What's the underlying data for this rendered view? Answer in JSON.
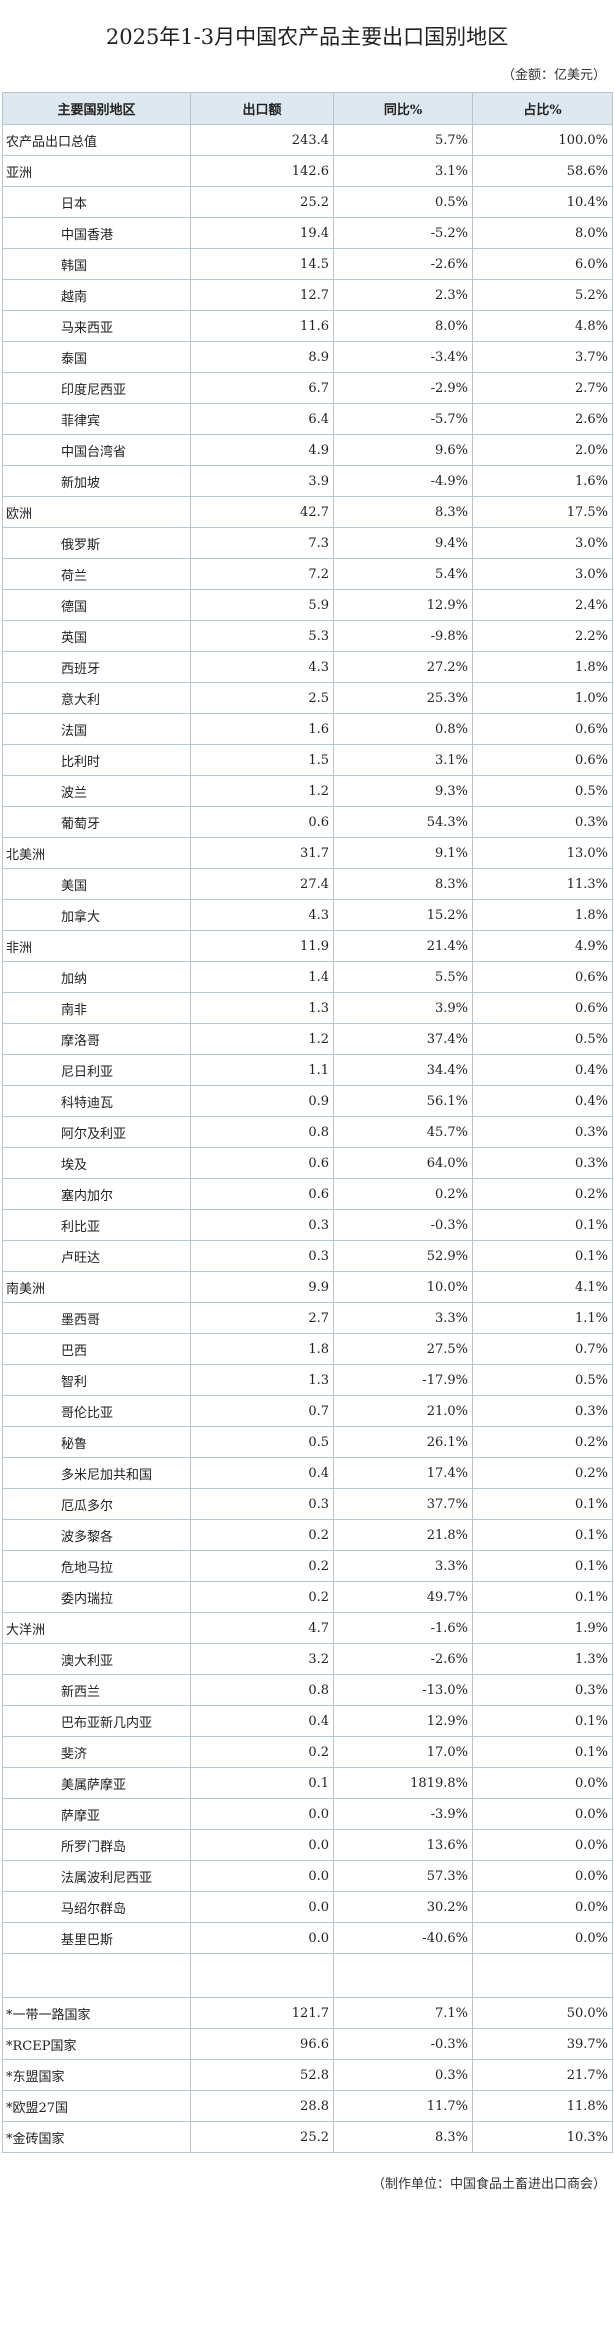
{
  "title": "2025年1-3月中国农产品主要出口国别地区",
  "unit_note": "（金额：亿美元）",
  "headers": [
    "主要国别地区",
    "出口额",
    "同比%",
    "占比%"
  ],
  "rows": [
    {
      "name": "农产品出口总值",
      "value": "243.4",
      "yoy": "5.7%",
      "share": "100.0%",
      "level": 0
    },
    {
      "name": "亚洲",
      "value": "142.6",
      "yoy": "3.1%",
      "share": "58.6%",
      "level": 0
    },
    {
      "name": "日本",
      "value": "25.2",
      "yoy": "0.5%",
      "share": "10.4%",
      "level": 1
    },
    {
      "name": "中国香港",
      "value": "19.4",
      "yoy": "-5.2%",
      "share": "8.0%",
      "level": 1
    },
    {
      "name": "韩国",
      "value": "14.5",
      "yoy": "-2.6%",
      "share": "6.0%",
      "level": 1
    },
    {
      "name": "越南",
      "value": "12.7",
      "yoy": "2.3%",
      "share": "5.2%",
      "level": 1
    },
    {
      "name": "马来西亚",
      "value": "11.6",
      "yoy": "8.0%",
      "share": "4.8%",
      "level": 1
    },
    {
      "name": "泰国",
      "value": "8.9",
      "yoy": "-3.4%",
      "share": "3.7%",
      "level": 1
    },
    {
      "name": "印度尼西亚",
      "value": "6.7",
      "yoy": "-2.9%",
      "share": "2.7%",
      "level": 1
    },
    {
      "name": "菲律宾",
      "value": "6.4",
      "yoy": "-5.7%",
      "share": "2.6%",
      "level": 1
    },
    {
      "name": "中国台湾省",
      "value": "4.9",
      "yoy": "9.6%",
      "share": "2.0%",
      "level": 1
    },
    {
      "name": "新加坡",
      "value": "3.9",
      "yoy": "-4.9%",
      "share": "1.6%",
      "level": 1
    },
    {
      "name": "欧洲",
      "value": "42.7",
      "yoy": "8.3%",
      "share": "17.5%",
      "level": 0
    },
    {
      "name": "俄罗斯",
      "value": "7.3",
      "yoy": "9.4%",
      "share": "3.0%",
      "level": 1
    },
    {
      "name": "荷兰",
      "value": "7.2",
      "yoy": "5.4%",
      "share": "3.0%",
      "level": 1
    },
    {
      "name": "德国",
      "value": "5.9",
      "yoy": "12.9%",
      "share": "2.4%",
      "level": 1
    },
    {
      "name": "英国",
      "value": "5.3",
      "yoy": "-9.8%",
      "share": "2.2%",
      "level": 1
    },
    {
      "name": "西班牙",
      "value": "4.3",
      "yoy": "27.2%",
      "share": "1.8%",
      "level": 1
    },
    {
      "name": "意大利",
      "value": "2.5",
      "yoy": "25.3%",
      "share": "1.0%",
      "level": 1
    },
    {
      "name": "法国",
      "value": "1.6",
      "yoy": "0.8%",
      "share": "0.6%",
      "level": 1
    },
    {
      "name": "比利时",
      "value": "1.5",
      "yoy": "3.1%",
      "share": "0.6%",
      "level": 1
    },
    {
      "name": "波兰",
      "value": "1.2",
      "yoy": "9.3%",
      "share": "0.5%",
      "level": 1
    },
    {
      "name": "葡萄牙",
      "value": "0.6",
      "yoy": "54.3%",
      "share": "0.3%",
      "level": 1
    },
    {
      "name": "北美洲",
      "value": "31.7",
      "yoy": "9.1%",
      "share": "13.0%",
      "level": 0
    },
    {
      "name": "美国",
      "value": "27.4",
      "yoy": "8.3%",
      "share": "11.3%",
      "level": 1
    },
    {
      "name": "加拿大",
      "value": "4.3",
      "yoy": "15.2%",
      "share": "1.8%",
      "level": 1
    },
    {
      "name": "非洲",
      "value": "11.9",
      "yoy": "21.4%",
      "share": "4.9%",
      "level": 0
    },
    {
      "name": "加纳",
      "value": "1.4",
      "yoy": "5.5%",
      "share": "0.6%",
      "level": 1
    },
    {
      "name": "南非",
      "value": "1.3",
      "yoy": "3.9%",
      "share": "0.6%",
      "level": 1
    },
    {
      "name": "摩洛哥",
      "value": "1.2",
      "yoy": "37.4%",
      "share": "0.5%",
      "level": 1
    },
    {
      "name": "尼日利亚",
      "value": "1.1",
      "yoy": "34.4%",
      "share": "0.4%",
      "level": 1
    },
    {
      "name": "科特迪瓦",
      "value": "0.9",
      "yoy": "56.1%",
      "share": "0.4%",
      "level": 1
    },
    {
      "name": "阿尔及利亚",
      "value": "0.8",
      "yoy": "45.7%",
      "share": "0.3%",
      "level": 1
    },
    {
      "name": "埃及",
      "value": "0.6",
      "yoy": "64.0%",
      "share": "0.3%",
      "level": 1
    },
    {
      "name": "塞内加尔",
      "value": "0.6",
      "yoy": "0.2%",
      "share": "0.2%",
      "level": 1
    },
    {
      "name": "利比亚",
      "value": "0.3",
      "yoy": "-0.3%",
      "share": "0.1%",
      "level": 1
    },
    {
      "name": "卢旺达",
      "value": "0.3",
      "yoy": "52.9%",
      "share": "0.1%",
      "level": 1
    },
    {
      "name": "南美洲",
      "value": "9.9",
      "yoy": "10.0%",
      "share": "4.1%",
      "level": 0
    },
    {
      "name": "墨西哥",
      "value": "2.7",
      "yoy": "3.3%",
      "share": "1.1%",
      "level": 1
    },
    {
      "name": "巴西",
      "value": "1.8",
      "yoy": "27.5%",
      "share": "0.7%",
      "level": 1
    },
    {
      "name": "智利",
      "value": "1.3",
      "yoy": "-17.9%",
      "share": "0.5%",
      "level": 1
    },
    {
      "name": "哥伦比亚",
      "value": "0.7",
      "yoy": "21.0%",
      "share": "0.3%",
      "level": 1
    },
    {
      "name": "秘鲁",
      "value": "0.5",
      "yoy": "26.1%",
      "share": "0.2%",
      "level": 1
    },
    {
      "name": "多米尼加共和国",
      "value": "0.4",
      "yoy": "17.4%",
      "share": "0.2%",
      "level": 1
    },
    {
      "name": "厄瓜多尔",
      "value": "0.3",
      "yoy": "37.7%",
      "share": "0.1%",
      "level": 1
    },
    {
      "name": "波多黎各",
      "value": "0.2",
      "yoy": "21.8%",
      "share": "0.1%",
      "level": 1
    },
    {
      "name": "危地马拉",
      "value": "0.2",
      "yoy": "3.3%",
      "share": "0.1%",
      "level": 1
    },
    {
      "name": "委内瑞拉",
      "value": "0.2",
      "yoy": "49.7%",
      "share": "0.1%",
      "level": 1
    },
    {
      "name": "大洋洲",
      "value": "4.7",
      "yoy": "-1.6%",
      "share": "1.9%",
      "level": 0
    },
    {
      "name": "澳大利亚",
      "value": "3.2",
      "yoy": "-2.6%",
      "share": "1.3%",
      "level": 1
    },
    {
      "name": "新西兰",
      "value": "0.8",
      "yoy": "-13.0%",
      "share": "0.3%",
      "level": 1
    },
    {
      "name": "巴布亚新几内亚",
      "value": "0.4",
      "yoy": "12.9%",
      "share": "0.1%",
      "level": 1
    },
    {
      "name": "斐济",
      "value": "0.2",
      "yoy": "17.0%",
      "share": "0.1%",
      "level": 1
    },
    {
      "name": "美属萨摩亚",
      "value": "0.1",
      "yoy": "1819.8%",
      "share": "0.0%",
      "level": 1
    },
    {
      "name": "萨摩亚",
      "value": "0.0",
      "yoy": "-3.9%",
      "share": "0.0%",
      "level": 1
    },
    {
      "name": "所罗门群岛",
      "value": "0.0",
      "yoy": "13.6%",
      "share": "0.0%",
      "level": 1
    },
    {
      "name": "法属波利尼西亚",
      "value": "0.0",
      "yoy": "57.3%",
      "share": "0.0%",
      "level": 1
    },
    {
      "name": "马绍尔群岛",
      "value": "0.0",
      "yoy": "30.2%",
      "share": "0.0%",
      "level": 1
    },
    {
      "name": "基里巴斯",
      "value": "0.0",
      "yoy": "-40.6%",
      "share": "0.0%",
      "level": 1
    }
  ],
  "groups": [
    {
      "name": "*一带一路国家",
      "value": "121.7",
      "yoy": "7.1%",
      "share": "50.0%"
    },
    {
      "name": "*RCEP国家",
      "value": "96.6",
      "yoy": "-0.3%",
      "share": "39.7%"
    },
    {
      "name": "*东盟国家",
      "value": "52.8",
      "yoy": "0.3%",
      "share": "21.7%"
    },
    {
      "name": "*欧盟27国",
      "value": "28.8",
      "yoy": "11.7%",
      "share": "11.8%"
    },
    {
      "name": "*金砖国家",
      "value": "25.2",
      "yoy": "8.3%",
      "share": "10.3%"
    }
  ],
  "footer": "（制作单位：中国食品土畜进出口商会）"
}
